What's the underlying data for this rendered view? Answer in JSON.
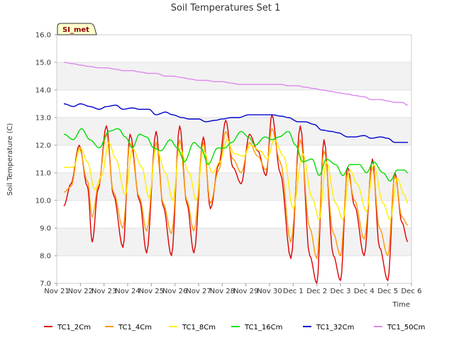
{
  "chart_data": {
    "type": "line",
    "title": "Soil Temperatures Set 1",
    "xlabel": "Time",
    "ylabel": "Soil Temperature (C)",
    "site_tag": "SI_met",
    "ylim": [
      7.0,
      16.0
    ],
    "yticks": [
      "7.0",
      "8.0",
      "9.0",
      "10.0",
      "11.0",
      "12.0",
      "13.0",
      "14.0",
      "15.0",
      "16.0"
    ],
    "xticks": [
      "Nov 21",
      "Nov 22",
      "Nov 23",
      "Nov 24",
      "Nov 25",
      "Nov 26",
      "Nov 27",
      "Nov 28",
      "Nov 29",
      "Nov 30",
      "Dec 1",
      "Dec 2",
      "Dec 3",
      "Dec 4",
      "Dec 5",
      "Dec 6"
    ],
    "grid": "horizontal bands",
    "legend": "bottom",
    "series": [
      {
        "name": "TC1_2Cm",
        "color": "#dd0000",
        "x": [
          0.3,
          0.6,
          0.95,
          1.3,
          1.5,
          1.75,
          2.1,
          2.4,
          2.8,
          3.1,
          3.5,
          3.8,
          4.2,
          4.5,
          4.85,
          5.2,
          5.5,
          5.8,
          6.2,
          6.5,
          6.85,
          7.15,
          7.45,
          7.8,
          8.15,
          8.5,
          8.85,
          9.1,
          9.45,
          9.9,
          10.3,
          10.7,
          11.0,
          11.3,
          11.7,
          12.0,
          12.3,
          12.6,
          13.0,
          13.35,
          13.65,
          14.0,
          14.3,
          14.6,
          14.85
        ],
        "values": [
          9.8,
          10.6,
          12.0,
          10.5,
          8.5,
          10.4,
          12.7,
          10.2,
          8.3,
          12.4,
          10.0,
          8.1,
          12.5,
          9.8,
          8.0,
          12.7,
          9.9,
          8.1,
          12.3,
          9.7,
          11.3,
          12.9,
          11.2,
          10.6,
          12.4,
          11.8,
          10.9,
          13.1,
          11.0,
          7.9,
          12.7,
          8.0,
          7.0,
          12.2,
          8.0,
          7.1,
          11.2,
          9.8,
          8.0,
          11.5,
          8.3,
          7.1,
          11.0,
          9.2,
          8.5
        ]
      },
      {
        "name": "TC1_4Cm",
        "color": "#ff9900",
        "x": [
          0.3,
          0.6,
          0.95,
          1.3,
          1.5,
          1.75,
          2.1,
          2.4,
          2.8,
          3.1,
          3.5,
          3.8,
          4.2,
          4.5,
          4.85,
          5.2,
          5.5,
          5.8,
          6.2,
          6.5,
          6.85,
          7.15,
          7.45,
          7.8,
          8.15,
          8.5,
          8.85,
          9.1,
          9.45,
          9.9,
          10.3,
          10.7,
          11.0,
          11.3,
          11.7,
          12.0,
          12.3,
          12.6,
          13.0,
          13.35,
          13.65,
          14.0,
          14.3,
          14.6,
          14.85
        ],
        "values": [
          10.3,
          10.5,
          11.9,
          10.7,
          9.4,
          10.5,
          12.4,
          10.3,
          9.0,
          12.1,
          10.1,
          8.9,
          12.1,
          9.9,
          8.8,
          12.2,
          10.0,
          8.9,
          12.1,
          9.9,
          11.1,
          12.5,
          11.5,
          11.0,
          12.1,
          11.6,
          11.1,
          12.6,
          11.4,
          8.5,
          12.2,
          9.0,
          7.9,
          11.8,
          8.8,
          8.0,
          11.0,
          10.0,
          8.6,
          11.2,
          9.0,
          8.0,
          10.9,
          9.4,
          9.1
        ]
      },
      {
        "name": "TC1_8Cm",
        "color": "#ffee00",
        "x": [
          0.3,
          0.7,
          1.0,
          1.3,
          1.6,
          1.9,
          2.2,
          2.5,
          2.9,
          3.2,
          3.6,
          3.9,
          4.2,
          4.6,
          4.9,
          5.2,
          5.6,
          5.9,
          6.2,
          6.6,
          6.9,
          7.2,
          7.5,
          7.9,
          8.2,
          8.6,
          8.9,
          9.2,
          9.6,
          10.0,
          10.4,
          10.8,
          11.1,
          11.4,
          11.8,
          12.1,
          12.4,
          12.7,
          13.1,
          13.4,
          13.8,
          14.1,
          14.4,
          14.7,
          14.85
        ],
        "values": [
          11.2,
          11.2,
          11.9,
          11.4,
          10.4,
          10.9,
          12.1,
          11.5,
          10.2,
          11.9,
          11.2,
          10.1,
          11.9,
          11.0,
          10.0,
          11.9,
          11.0,
          10.0,
          11.8,
          11.0,
          11.4,
          12.2,
          11.7,
          11.6,
          12.0,
          11.8,
          11.5,
          12.2,
          11.6,
          9.7,
          11.7,
          10.1,
          9.3,
          11.4,
          9.9,
          9.3,
          11.1,
          10.6,
          9.6,
          11.3,
          9.9,
          9.3,
          10.8,
          10.2,
          9.9
        ]
      },
      {
        "name": "TC1_16Cm",
        "color": "#00dd00",
        "x": [
          0.3,
          0.7,
          1.05,
          1.4,
          1.8,
          2.2,
          2.6,
          2.9,
          3.2,
          3.5,
          3.8,
          4.1,
          4.4,
          4.8,
          5.1,
          5.4,
          5.8,
          6.1,
          6.4,
          6.8,
          7.1,
          7.4,
          7.8,
          8.1,
          8.4,
          8.8,
          9.1,
          9.4,
          9.8,
          10.1,
          10.4,
          10.8,
          11.1,
          11.4,
          11.8,
          12.1,
          12.4,
          12.8,
          13.1,
          13.4,
          13.8,
          14.1,
          14.4,
          14.7,
          14.85
        ],
        "values": [
          12.4,
          12.2,
          12.6,
          12.2,
          11.9,
          12.5,
          12.6,
          12.3,
          11.9,
          12.4,
          12.3,
          11.9,
          11.8,
          12.2,
          11.9,
          11.4,
          12.1,
          11.9,
          11.3,
          11.9,
          11.9,
          12.1,
          12.5,
          12.3,
          12.0,
          12.3,
          12.2,
          12.3,
          12.5,
          12.0,
          11.4,
          11.5,
          10.9,
          11.5,
          11.3,
          10.9,
          11.3,
          11.3,
          11.0,
          11.4,
          11.0,
          10.7,
          11.1,
          11.1,
          11.0
        ]
      },
      {
        "name": "TC1_32Cm",
        "color": "#0000cc",
        "x": [
          0.3,
          0.7,
          1.0,
          1.4,
          1.8,
          2.1,
          2.5,
          2.8,
          3.2,
          3.5,
          3.9,
          4.2,
          4.6,
          4.9,
          5.3,
          5.6,
          6.0,
          6.3,
          6.7,
          7.0,
          7.4,
          7.7,
          8.1,
          8.4,
          8.8,
          9.1,
          9.5,
          9.8,
          10.2,
          10.5,
          10.9,
          11.2,
          11.6,
          11.9,
          12.3,
          12.6,
          13.0,
          13.3,
          13.7,
          14.0,
          14.3,
          14.6,
          14.85
        ],
        "values": [
          13.5,
          13.4,
          13.5,
          13.4,
          13.3,
          13.4,
          13.45,
          13.3,
          13.35,
          13.3,
          13.3,
          13.1,
          13.2,
          13.1,
          13.0,
          12.95,
          12.95,
          12.85,
          12.9,
          12.95,
          13.0,
          13.0,
          13.1,
          13.1,
          13.1,
          13.1,
          13.05,
          13.0,
          12.85,
          12.85,
          12.75,
          12.55,
          12.5,
          12.45,
          12.3,
          12.3,
          12.35,
          12.25,
          12.3,
          12.25,
          12.1,
          12.1,
          12.1
        ]
      },
      {
        "name": "TC1_50Cm",
        "color": "#dd88ee",
        "x": [
          0.3,
          0.7,
          1.0,
          1.4,
          1.8,
          2.1,
          2.5,
          2.8,
          3.2,
          3.5,
          3.9,
          4.2,
          4.6,
          4.9,
          5.3,
          5.6,
          6.0,
          6.3,
          6.7,
          7.0,
          7.4,
          7.7,
          8.1,
          8.4,
          8.8,
          9.1,
          9.5,
          9.8,
          10.2,
          10.5,
          10.9,
          11.2,
          11.6,
          11.9,
          12.3,
          12.6,
          13.0,
          13.3,
          13.7,
          14.0,
          14.3,
          14.6,
          14.85
        ],
        "values": [
          15.0,
          14.95,
          14.9,
          14.85,
          14.8,
          14.8,
          14.75,
          14.7,
          14.7,
          14.65,
          14.6,
          14.6,
          14.5,
          14.5,
          14.45,
          14.4,
          14.35,
          14.35,
          14.3,
          14.3,
          14.25,
          14.2,
          14.2,
          14.2,
          14.2,
          14.2,
          14.2,
          14.15,
          14.15,
          14.1,
          14.05,
          14.0,
          13.95,
          13.9,
          13.85,
          13.8,
          13.75,
          13.65,
          13.65,
          13.6,
          13.55,
          13.55,
          13.45
        ]
      }
    ]
  }
}
